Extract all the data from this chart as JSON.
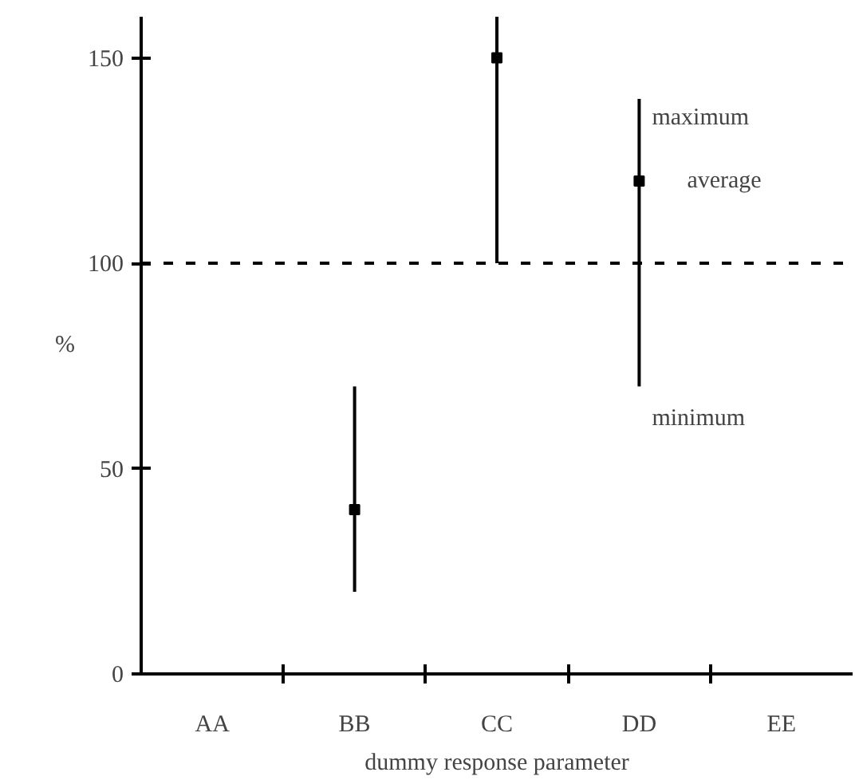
{
  "chart_data": {
    "type": "scatter",
    "xlabel": "dummy response parameter",
    "ylabel": "%",
    "categories": [
      "AA",
      "BB",
      "CC",
      "DD",
      "EE"
    ],
    "series": [
      {
        "color": "#000000",
        "x": [
          "AA",
          "BB",
          "CC",
          "DD",
          "EE"
        ],
        "values": [
          null,
          40,
          150,
          120,
          null
        ],
        "errors": [
          null,
          [
            20,
            70
          ],
          [
            100,
            160
          ],
          [
            70,
            140
          ],
          null
        ]
      }
    ],
    "marker": "square",
    "ylim": [
      0,
      160
    ],
    "yticks": [
      0,
      50,
      100,
      150
    ],
    "ref_lines": [
      {
        "axis": "y",
        "value": 100,
        "line_style": "dashed",
        "color": "#000000"
      }
    ],
    "annotations": [
      {
        "text": "maximum",
        "x": "DD",
        "y": 140
      },
      {
        "text": "average",
        "x": "DD",
        "y": 120
      },
      {
        "text": "minimum",
        "x": "DD",
        "y": 70
      }
    ],
    "grid": false
  }
}
